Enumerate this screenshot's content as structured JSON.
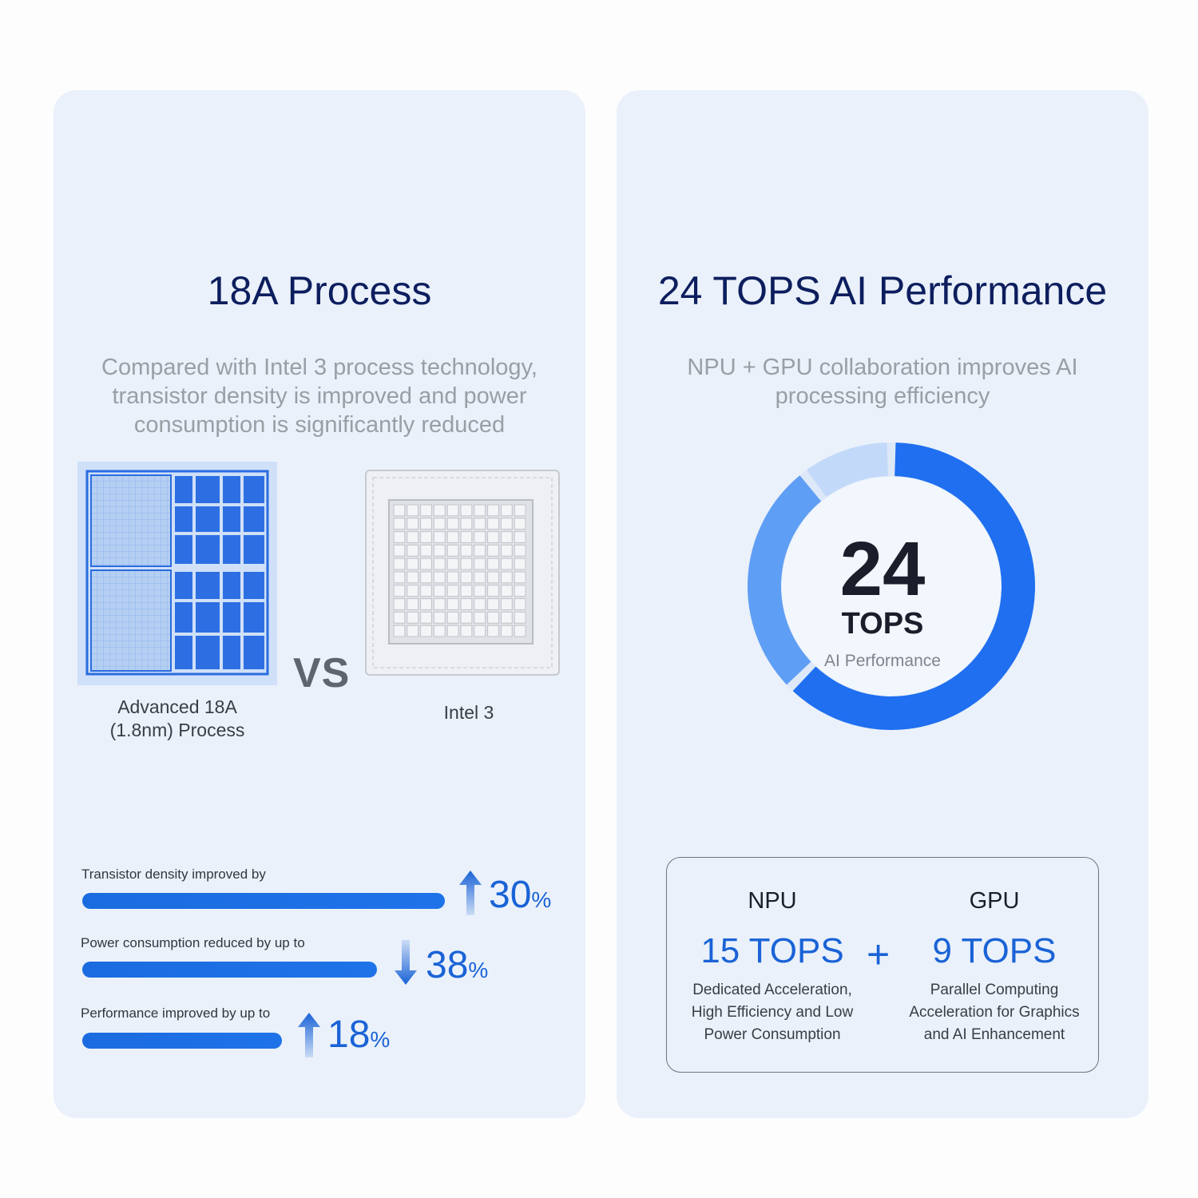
{
  "left_card": {
    "title": "18A Process",
    "subtitle": "Compared with Intel 3 process technology, transistor density is improved and power consumption is significantly reduced",
    "chip_a_caption_line1": "Advanced 18A",
    "chip_a_caption_line2": "(1.8nm) Process",
    "vs_label": "VS",
    "chip_b_caption": "Intel 3",
    "stats": [
      {
        "label": "Transistor density improved by",
        "value": "30",
        "unit": "%",
        "direction": "up",
        "fill": 1.0
      },
      {
        "label": "Power consumption reduced by up to",
        "value": "38",
        "unit": "%",
        "direction": "down",
        "fill": 0.82
      },
      {
        "label": "Performance improved by up to",
        "value": "18",
        "unit": "%",
        "direction": "up",
        "fill": 0.55
      }
    ]
  },
  "right_card": {
    "title": "24 TOPS AI Performance",
    "subtitle": "NPU + GPU collaboration improves AI processing efficiency",
    "donut": {
      "value": "24",
      "unit": "TOPS",
      "caption": "AI Performance",
      "segments": [
        {
          "name": "NPU",
          "value": 15,
          "color": "#1f6ff0"
        },
        {
          "name": "GPU",
          "value": 9,
          "color": "#5f9ef5"
        }
      ]
    },
    "breakdown": {
      "npu_head": "NPU",
      "npu_value": "15 TOPS",
      "npu_desc_1": "Dedicated Acceleration,",
      "npu_desc_2": "High Efficiency and Low",
      "npu_desc_3": "Power Consumption",
      "plus": "+",
      "gpu_head": "GPU",
      "gpu_value": "9 TOPS",
      "gpu_desc_1": "Parallel Computing",
      "gpu_desc_2": "Acceleration for Graphics",
      "gpu_desc_3": "and AI Enhancement"
    }
  }
}
